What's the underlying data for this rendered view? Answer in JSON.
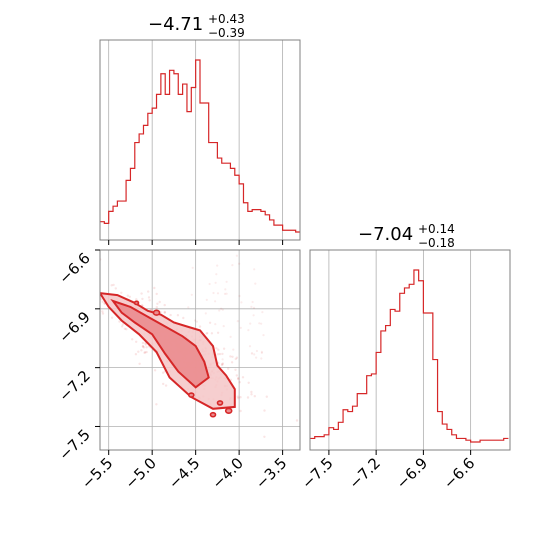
{
  "colors": {
    "series": "#d62728",
    "grid": "#b0b0b0",
    "axes": "#808080",
    "fill_1sigma": "#eb8c8e",
    "fill_2sigma": "#f4c6c7"
  },
  "chart_data": [
    {
      "type": "histogram",
      "panel": "marginal-param-1",
      "title": {
        "value": "−4.71",
        "upper": "+0.43",
        "lower": "−0.39"
      },
      "xlim": [
        -5.6,
        -3.3
      ],
      "grid": true,
      "x": [
        -5.6,
        -5.55,
        -5.5,
        -5.45,
        -5.4,
        -5.35,
        -5.3,
        -5.25,
        -5.2,
        -5.15,
        -5.1,
        -5.05,
        -5.0,
        -4.95,
        -4.9,
        -4.85,
        -4.8,
        -4.75,
        -4.7,
        -4.65,
        -4.6,
        -4.55,
        -4.5,
        -4.45,
        -4.4,
        -4.35,
        -4.3,
        -4.25,
        -4.2,
        -4.15,
        -4.1,
        -4.05,
        -4.0,
        -3.95,
        -3.9,
        -3.85,
        -3.8,
        -3.75,
        -3.7,
        -3.65,
        -3.6,
        -3.55,
        -3.5,
        -3.45,
        -3.4,
        -3.35,
        -3.3
      ],
      "counts": [
        6,
        5,
        12,
        15,
        18,
        18,
        30,
        37,
        52,
        57,
        62,
        69,
        72,
        80,
        92,
        80,
        94,
        92,
        80,
        86,
        70,
        84,
        100,
        75,
        75,
        52,
        52,
        43,
        40,
        40,
        37,
        33,
        28,
        17,
        12,
        13,
        13,
        12,
        10,
        7,
        4,
        4,
        1,
        1,
        1,
        0
      ]
    },
    {
      "type": "scatter-contour",
      "panel": "joint-param-1-vs-param-2",
      "xlim": [
        -5.6,
        -3.3
      ],
      "ylim": [
        -7.62,
        -6.6
      ],
      "x_ticks": [
        "−5.5",
        "−5.0",
        "−4.5",
        "−4.0",
        "−3.5"
      ],
      "x_tick_values": [
        -5.5,
        -5.0,
        -4.5,
        -4.0,
        -3.5
      ],
      "y_ticks": [
        "−6.6",
        "−6.9",
        "−7.2",
        "−7.5"
      ],
      "y_tick_values": [
        -6.6,
        -6.9,
        -7.2,
        -7.5
      ],
      "grid": true,
      "contour_outer": [
        [
          -5.6,
          -6.82
        ],
        [
          -5.4,
          -6.83
        ],
        [
          -5.2,
          -6.87
        ],
        [
          -5.05,
          -6.91
        ],
        [
          -4.9,
          -6.93
        ],
        [
          -4.75,
          -6.97
        ],
        [
          -4.6,
          -6.99
        ],
        [
          -4.45,
          -7.01
        ],
        [
          -4.3,
          -7.09
        ],
        [
          -4.25,
          -7.19
        ],
        [
          -4.15,
          -7.24
        ],
        [
          -4.05,
          -7.31
        ],
        [
          -4.05,
          -7.4
        ],
        [
          -4.3,
          -7.41
        ],
        [
          -4.55,
          -7.35
        ],
        [
          -4.8,
          -7.25
        ],
        [
          -4.95,
          -7.12
        ],
        [
          -5.15,
          -7.03
        ],
        [
          -5.35,
          -6.96
        ],
        [
          -5.5,
          -6.89
        ],
        [
          -5.6,
          -6.82
        ]
      ],
      "contour_inner": [
        [
          -5.45,
          -6.86
        ],
        [
          -5.25,
          -6.89
        ],
        [
          -5.05,
          -6.94
        ],
        [
          -4.85,
          -6.99
        ],
        [
          -4.65,
          -7.04
        ],
        [
          -4.5,
          -7.09
        ],
        [
          -4.4,
          -7.17
        ],
        [
          -4.35,
          -7.25
        ],
        [
          -4.5,
          -7.3
        ],
        [
          -4.7,
          -7.22
        ],
        [
          -4.85,
          -7.13
        ],
        [
          -5.0,
          -7.03
        ],
        [
          -5.2,
          -6.97
        ],
        [
          -5.35,
          -6.92
        ],
        [
          -5.45,
          -6.86
        ]
      ]
    },
    {
      "type": "histogram",
      "panel": "marginal-param-2",
      "title": {
        "value": "−7.04",
        "upper": "+0.14",
        "lower": "−0.18"
      },
      "xlim": [
        -7.62,
        -6.35
      ],
      "x_ticks": [
        "−7.5",
        "−7.2",
        "−6.9",
        "−6.6"
      ],
      "x_tick_values": [
        -7.5,
        -7.2,
        -6.9,
        -6.6
      ],
      "grid": true,
      "x": [
        -7.62,
        -7.59,
        -7.56,
        -7.53,
        -7.5,
        -7.47,
        -7.44,
        -7.41,
        -7.38,
        -7.35,
        -7.32,
        -7.29,
        -7.26,
        -7.23,
        -7.2,
        -7.17,
        -7.14,
        -7.11,
        -7.08,
        -7.05,
        -7.02,
        -6.99,
        -6.96,
        -6.93,
        -6.9,
        -6.87,
        -6.84,
        -6.81,
        -6.78,
        -6.75,
        -6.72,
        -6.69,
        -6.66,
        -6.63,
        -6.6,
        -6.57,
        -6.54,
        -6.51,
        -6.48,
        -6.45,
        -6.42,
        -6.39,
        -6.36
      ],
      "counts": [
        2,
        3,
        3,
        4,
        8,
        7,
        11,
        18,
        17,
        20,
        27,
        27,
        37,
        38,
        50,
        62,
        65,
        74,
        73,
        83,
        86,
        88,
        96,
        90,
        72,
        72,
        46,
        17,
        10,
        7,
        4,
        2,
        2,
        1,
        0,
        0,
        1,
        1,
        1,
        1,
        1,
        2
      ]
    }
  ]
}
